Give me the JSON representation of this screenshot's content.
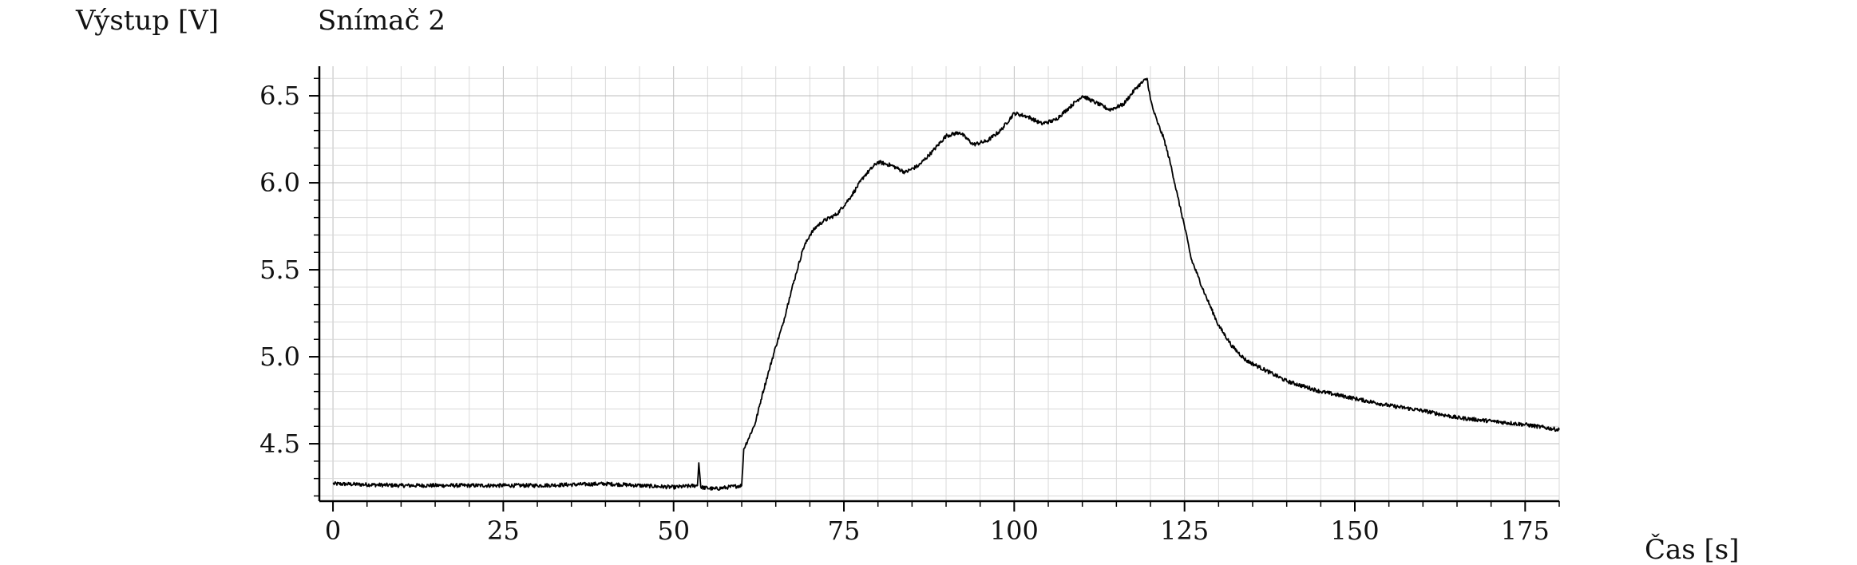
{
  "chart_data": {
    "type": "line",
    "title": "Snímač 2",
    "xlabel": "Čas [s]",
    "ylabel": "Výstup [V]",
    "xlim": [
      -2,
      180
    ],
    "ylim": [
      4.17,
      6.67
    ],
    "grid": true,
    "x_ticks": [
      0,
      25,
      50,
      75,
      100,
      125,
      150,
      175
    ],
    "y_ticks": [
      4.5,
      5.0,
      5.5,
      6.0,
      6.5
    ],
    "x_tick_labels": [
      "0",
      "25",
      "50",
      "75",
      "100",
      "125",
      "150",
      "175"
    ],
    "y_tick_labels": [
      "4.5",
      "5.0",
      "5.5",
      "6.0",
      "6.5"
    ],
    "series": [
      {
        "color": "#000000",
        "x": [
          0,
          10,
          20,
          30,
          40,
          50,
          53.5,
          53.7,
          54,
          56,
          58,
          60,
          60.3,
          61,
          62,
          63,
          64,
          65,
          66,
          67,
          68,
          69,
          70,
          71,
          72,
          74,
          76,
          78,
          80,
          82,
          84,
          86,
          88,
          90,
          92,
          94,
          96,
          98,
          100,
          102,
          104,
          106,
          108,
          110,
          112,
          114,
          116,
          118,
          119.5,
          120,
          120.4,
          121,
          122,
          123,
          124,
          125,
          126,
          127,
          128,
          130,
          132,
          134,
          136,
          138,
          140,
          145,
          150,
          155,
          160,
          165,
          170,
          175,
          180
        ],
        "y": [
          4.27,
          4.26,
          4.26,
          4.26,
          4.27,
          4.25,
          4.26,
          4.39,
          4.25,
          4.24,
          4.25,
          4.26,
          4.47,
          4.53,
          4.62,
          4.78,
          4.92,
          5.06,
          5.18,
          5.34,
          5.48,
          5.62,
          5.7,
          5.75,
          5.78,
          5.82,
          5.92,
          6.04,
          6.12,
          6.1,
          6.06,
          6.1,
          6.18,
          6.27,
          6.29,
          6.22,
          6.24,
          6.3,
          6.4,
          6.38,
          6.34,
          6.36,
          6.43,
          6.5,
          6.46,
          6.42,
          6.45,
          6.55,
          6.6,
          6.48,
          6.42,
          6.35,
          6.25,
          6.1,
          5.92,
          5.75,
          5.56,
          5.46,
          5.36,
          5.18,
          5.06,
          4.98,
          4.94,
          4.9,
          4.86,
          4.8,
          4.76,
          4.72,
          4.69,
          4.65,
          4.63,
          4.61,
          4.58
        ]
      }
    ]
  }
}
